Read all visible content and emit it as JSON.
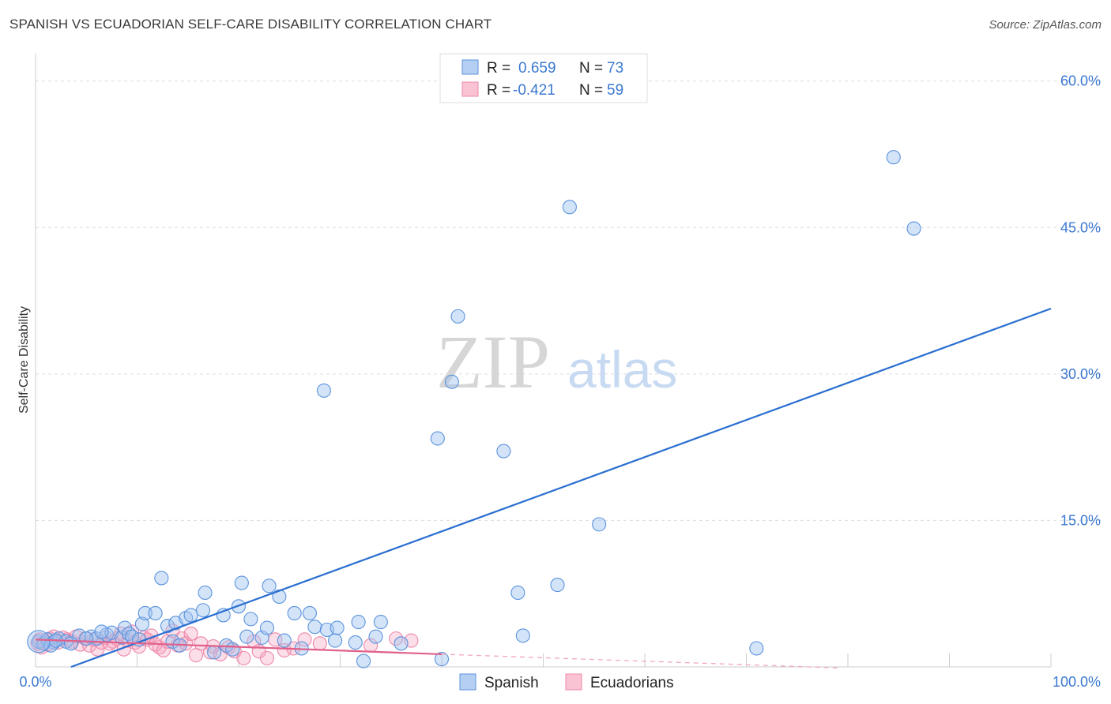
{
  "title": "SPANISH VS ECUADORIAN SELF-CARE DISABILITY CORRELATION CHART",
  "source": "Source: ZipAtlas.com",
  "colors": {
    "spanish": "#5b93dd",
    "ecuadorians": "#ee88aa",
    "spanish_line": "#2a6fd0",
    "ecuadorian_line": "#e0608a",
    "tick": "#3b78d0"
  },
  "legend": {
    "rows": [
      {
        "r_label": "R =",
        "r_value": "0.659",
        "n_label": "N =",
        "n_value": "73"
      },
      {
        "r_label": "R =",
        "r_value": "-0.421",
        "n_label": "N =",
        "n_value": "59"
      }
    ]
  },
  "chart_data": {
    "type": "scatter",
    "title": "SPANISH VS ECUADORIAN SELF-CARE DISABILITY CORRELATION CHART",
    "xlabel": "",
    "ylabel": "Self-Care Disability",
    "xlim": [
      0,
      100
    ],
    "ylim": [
      0,
      62
    ],
    "x_tick_labels": [
      "0.0%",
      "100.0%"
    ],
    "y_ticks": [
      15,
      30,
      45,
      60
    ],
    "y_tick_labels": [
      "15.0%",
      "30.0%",
      "45.0%",
      "60.0%"
    ],
    "grid": true,
    "legend_position": "top-center",
    "series": [
      {
        "name": "Spanish",
        "r": 0.659,
        "n": 73,
        "trend": {
          "x": [
            3.5,
            100
          ],
          "y": [
            0,
            36.7
          ]
        },
        "points": [
          [
            0.3,
            2.6
          ],
          [
            0.8,
            2.4
          ],
          [
            1.2,
            2.8
          ],
          [
            1.8,
            2.5
          ],
          [
            2.3,
            2.9
          ],
          [
            3.0,
            2.6
          ],
          [
            4.3,
            3.2
          ],
          [
            5.5,
            3.1
          ],
          [
            6.0,
            2.9
          ],
          [
            7.0,
            3.3
          ],
          [
            7.5,
            3.5
          ],
          [
            8.5,
            3.0
          ],
          [
            8.8,
            4.0
          ],
          [
            9.2,
            3.4
          ],
          [
            9.5,
            3.1
          ],
          [
            10.2,
            2.8
          ],
          [
            10.5,
            4.4
          ],
          [
            10.8,
            5.5
          ],
          [
            11.8,
            5.5
          ],
          [
            12.4,
            9.1
          ],
          [
            13.0,
            4.2
          ],
          [
            13.5,
            2.6
          ],
          [
            13.8,
            4.5
          ],
          [
            14.2,
            2.2
          ],
          [
            14.8,
            5.0
          ],
          [
            15.3,
            5.3
          ],
          [
            16.5,
            5.8
          ],
          [
            16.7,
            7.6
          ],
          [
            17.6,
            1.5
          ],
          [
            18.5,
            5.3
          ],
          [
            18.8,
            2.2
          ],
          [
            19.4,
            1.8
          ],
          [
            20.0,
            6.2
          ],
          [
            20.3,
            8.6
          ],
          [
            20.8,
            3.1
          ],
          [
            21.2,
            4.9
          ],
          [
            22.3,
            3.0
          ],
          [
            22.8,
            4.0
          ],
          [
            23.0,
            8.3
          ],
          [
            24.0,
            7.2
          ],
          [
            24.5,
            2.7
          ],
          [
            25.5,
            5.5
          ],
          [
            26.2,
            1.9
          ],
          [
            27.0,
            5.5
          ],
          [
            27.5,
            4.1
          ],
          [
            28.4,
            28.3
          ],
          [
            28.7,
            3.8
          ],
          [
            29.5,
            2.7
          ],
          [
            29.7,
            4.0
          ],
          [
            31.5,
            2.5
          ],
          [
            31.8,
            4.6
          ],
          [
            32.3,
            0.6
          ],
          [
            33.5,
            3.1
          ],
          [
            34.0,
            4.6
          ],
          [
            36.0,
            2.4
          ],
          [
            39.6,
            23.4
          ],
          [
            40.0,
            0.8
          ],
          [
            41.6,
            35.9
          ],
          [
            41.0,
            29.2
          ],
          [
            46.1,
            22.1
          ],
          [
            47.5,
            7.6
          ],
          [
            48.0,
            3.2
          ],
          [
            51.4,
            8.4
          ],
          [
            52.6,
            47.1
          ],
          [
            55.5,
            14.6
          ],
          [
            71.0,
            1.9
          ],
          [
            84.5,
            52.2
          ],
          [
            86.5,
            44.9
          ],
          [
            1.5,
            2.2
          ],
          [
            2.0,
            2.7
          ],
          [
            3.5,
            2.4
          ],
          [
            5.0,
            2.9
          ],
          [
            6.5,
            3.6
          ]
        ]
      },
      {
        "name": "Ecuadorians",
        "r": -0.421,
        "n": 59,
        "trend": {
          "x": [
            0,
            40
          ],
          "y": [
            2.8,
            1.3
          ]
        },
        "trend_dashed": {
          "x": [
            40,
            79
          ],
          "y": [
            1.3,
            -0.1
          ]
        },
        "points": [
          [
            0.2,
            2.4
          ],
          [
            0.6,
            2.0
          ],
          [
            1.0,
            2.6
          ],
          [
            1.4,
            2.9
          ],
          [
            1.8,
            3.1
          ],
          [
            2.2,
            2.5
          ],
          [
            2.7,
            3.0
          ],
          [
            3.1,
            2.8
          ],
          [
            3.6,
            2.6
          ],
          [
            4.0,
            3.1
          ],
          [
            4.4,
            2.3
          ],
          [
            4.9,
            2.9
          ],
          [
            5.3,
            2.2
          ],
          [
            5.7,
            2.8
          ],
          [
            6.1,
            1.8
          ],
          [
            6.5,
            2.5
          ],
          [
            6.9,
            3.0
          ],
          [
            7.3,
            2.4
          ],
          [
            7.6,
            2.6
          ],
          [
            8.0,
            2.9
          ],
          [
            8.4,
            3.4
          ],
          [
            8.7,
            1.8
          ],
          [
            9.1,
            2.7
          ],
          [
            9.5,
            3.6
          ],
          [
            9.8,
            2.5
          ],
          [
            10.2,
            2.1
          ],
          [
            10.7,
            3.0
          ],
          [
            11.0,
            2.8
          ],
          [
            11.4,
            3.2
          ],
          [
            11.8,
            2.3
          ],
          [
            12.2,
            2.0
          ],
          [
            12.6,
            1.7
          ],
          [
            13.0,
            2.6
          ],
          [
            13.5,
            3.7
          ],
          [
            14.0,
            2.2
          ],
          [
            14.4,
            2.9
          ],
          [
            14.8,
            2.4
          ],
          [
            15.3,
            3.4
          ],
          [
            15.8,
            1.2
          ],
          [
            16.3,
            2.4
          ],
          [
            17.2,
            1.5
          ],
          [
            17.5,
            2.1
          ],
          [
            18.2,
            1.3
          ],
          [
            19.0,
            2.0
          ],
          [
            19.6,
            1.6
          ],
          [
            20.5,
            0.9
          ],
          [
            21.5,
            2.6
          ],
          [
            22.0,
            1.6
          ],
          [
            22.8,
            0.9
          ],
          [
            23.6,
            2.8
          ],
          [
            24.5,
            1.7
          ],
          [
            25.4,
            1.9
          ],
          [
            26.5,
            2.8
          ],
          [
            28.0,
            2.4
          ],
          [
            33.0,
            2.2
          ],
          [
            35.5,
            2.9
          ],
          [
            37.0,
            2.7
          ],
          [
            0.4,
            2.8
          ],
          [
            1.2,
            2.3
          ]
        ]
      }
    ]
  },
  "bottom_legend": [
    "Spanish",
    "Ecuadorians"
  ],
  "watermark": {
    "zip": "ZIP",
    "atlas": "atlas"
  }
}
